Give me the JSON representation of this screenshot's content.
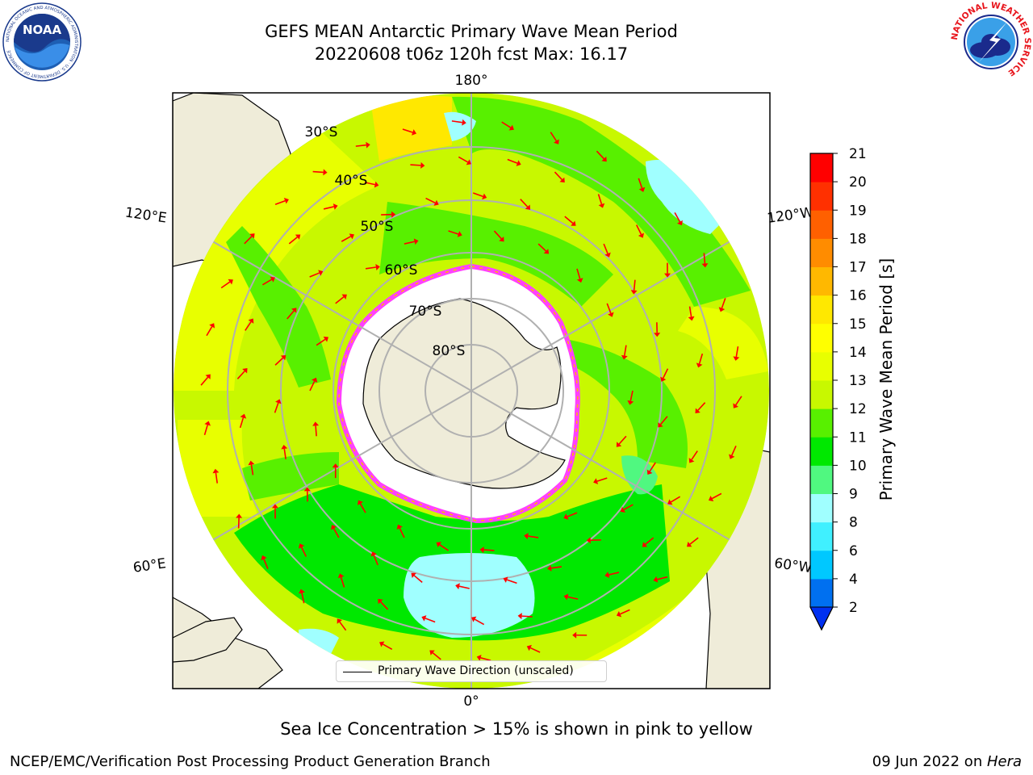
{
  "title": {
    "line1": "GEFS MEAN Antarctic Primary Wave Mean Period",
    "line2": "20220608 t06z 120h fcst   Max: 16.17"
  },
  "logos": {
    "noaa": {
      "icon": "noaa-logo-icon",
      "text": "NOAA",
      "ring_text": "NATIONAL OCEANIC AND ATMOSPHERIC ADMINISTRATION · U.S. DEPARTMENT OF COMMERCE"
    },
    "nws": {
      "icon": "nws-logo-icon",
      "ring_text": "NATIONAL WEATHER SERVICE"
    }
  },
  "map": {
    "projection": "south-polar-stereographic",
    "longitude_labels": {
      "top": "180°",
      "bottom": "0°",
      "upper_left": "120°E",
      "upper_right": "120°W",
      "lower_left": "60°E",
      "lower_right": "60°W"
    },
    "latitude_labels": [
      "30°S",
      "40°S",
      "50°S",
      "60°S",
      "70°S",
      "80°S"
    ],
    "field": "Primary Wave Mean Period",
    "field_max": 16.17,
    "arrow_color": "#ff0000",
    "land_color": "#efecd9",
    "grid_color": "#b0b0b0"
  },
  "colorbar": {
    "label": "Primary Wave Mean Period [s]",
    "ticks": [
      "2",
      "4",
      "6",
      "8",
      "9",
      "10",
      "11",
      "12",
      "13",
      "14",
      "15",
      "16",
      "17",
      "18",
      "19",
      "20",
      "21"
    ],
    "colors": [
      "#0070f0",
      "#00c8ff",
      "#40f0ff",
      "#a0ffff",
      "#50f880",
      "#00e800",
      "#58f000",
      "#c8f800",
      "#e8ff00",
      "#ffff00",
      "#ffe800",
      "#ffb800",
      "#ff8c00",
      "#ff6000",
      "#ff3000",
      "#ff0000"
    ],
    "extend_color": "#0030f0",
    "extend": "min"
  },
  "legend": {
    "label": "Primary Wave Direction (unscaled)"
  },
  "footnote": "Sea Ice Concentration > 15% is shown in pink to yellow",
  "credits": {
    "left": "NCEP/EMC/Verification Post Processing Product Generation Branch",
    "right_prefix": "09 Jun 2022 on ",
    "right_host": "Hera"
  }
}
